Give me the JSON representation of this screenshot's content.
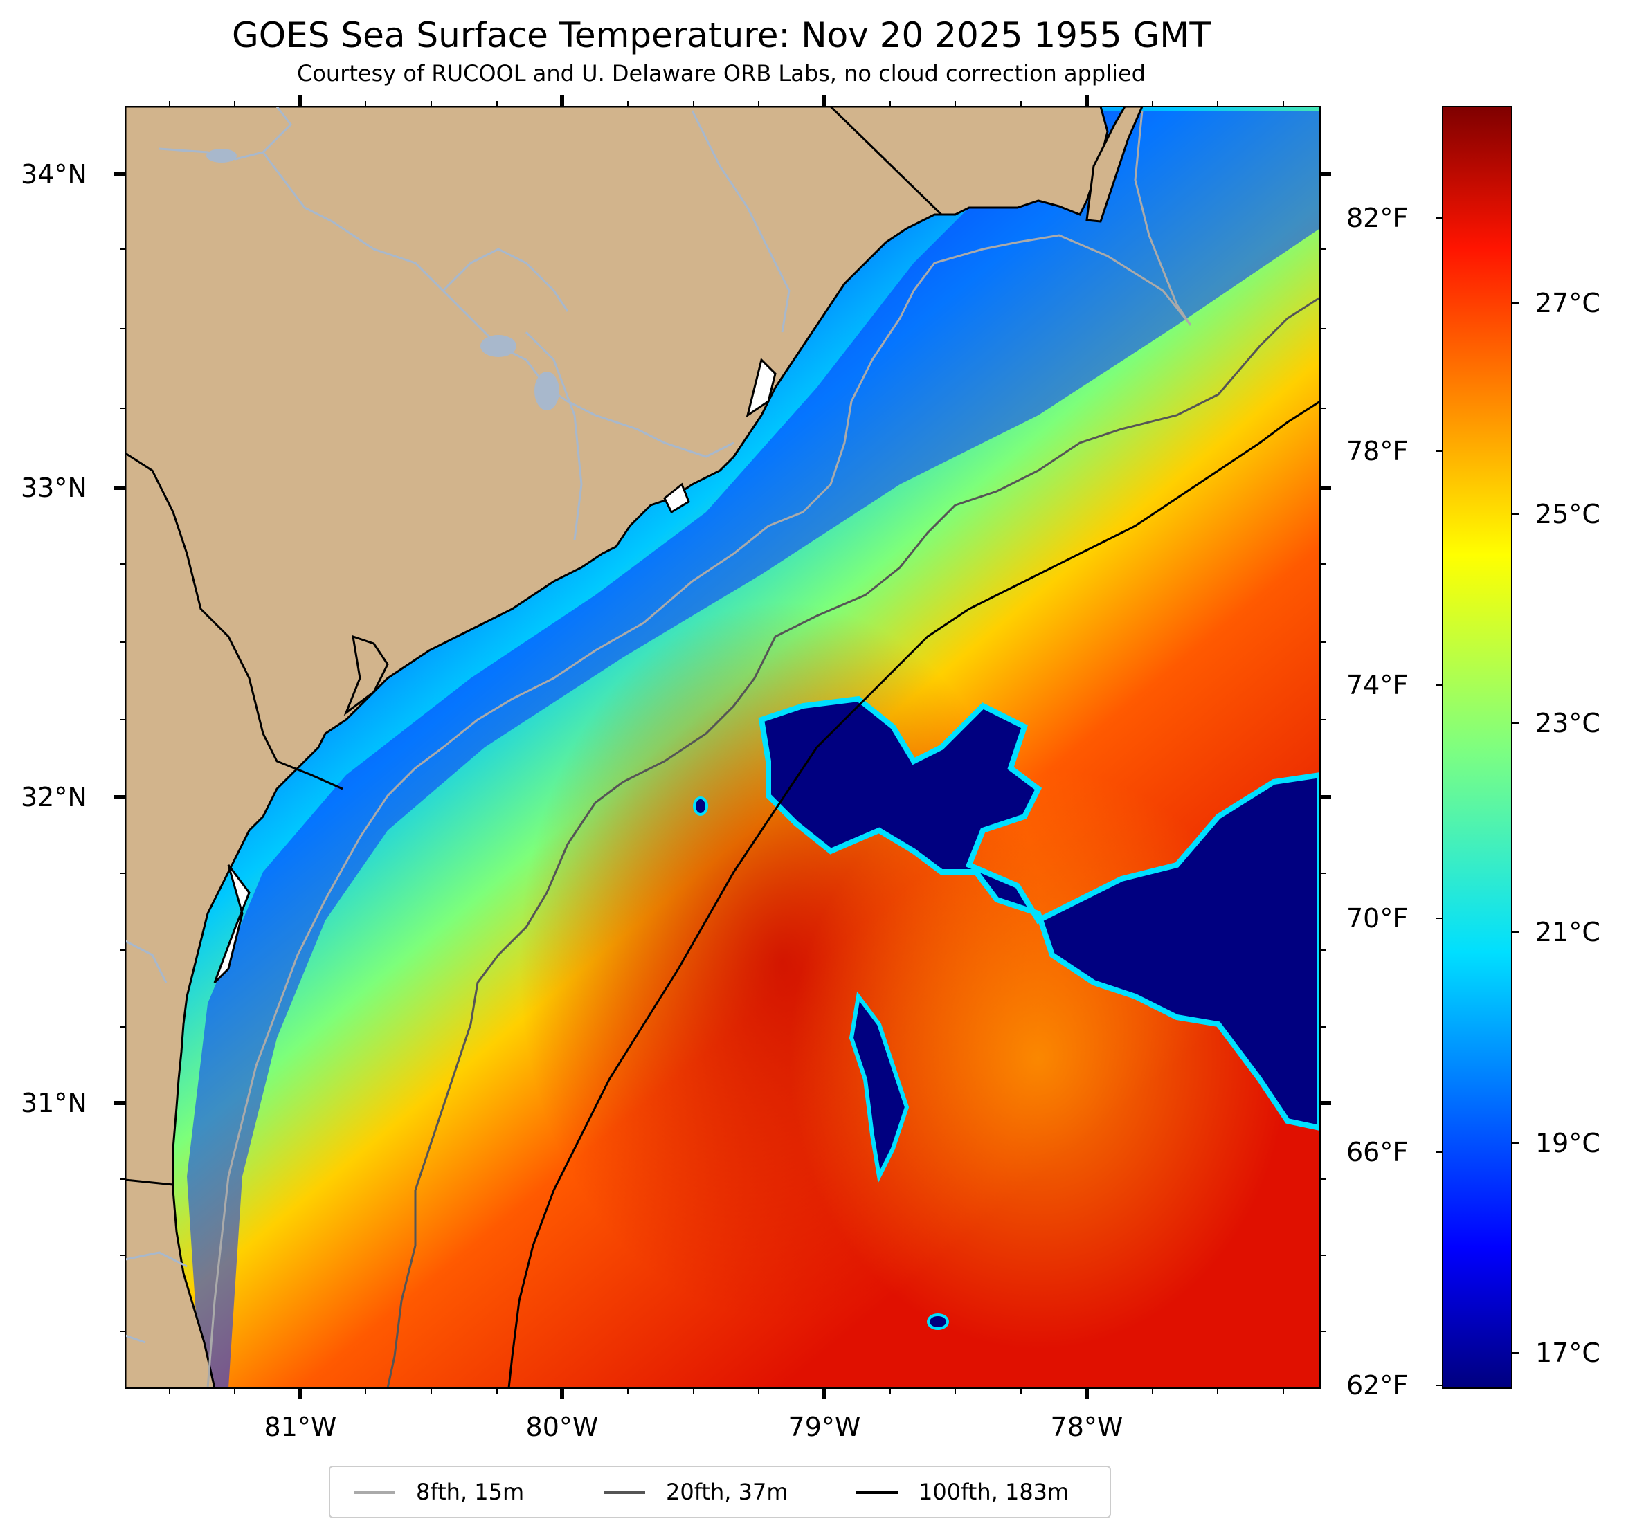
{
  "title": "GOES Sea Surface Temperature: Nov 20 2025 1955 GMT",
  "subtitle": "Courtesy of RUCOOL and U. Delaware ORB Labs, no cloud correction applied",
  "colors": {
    "land": "#d2b48c",
    "rivers": "#a8b8cc",
    "coast": "#000000",
    "contour_8fth": "#aaaaaa",
    "contour_20fth": "#555555",
    "contour_100fth": "#000000"
  },
  "axes": {
    "lat_labels": [
      "34°N",
      "33°N",
      "32°N",
      "31°N"
    ],
    "lon_labels": [
      "81°W",
      "80°W",
      "79°W",
      "78°W"
    ]
  },
  "colorbar": {
    "colormap": "jet",
    "fahrenheit_labels": [
      "82°F",
      "78°F",
      "74°F",
      "70°F",
      "66°F",
      "62°F"
    ],
    "celsius_labels": [
      "27°C",
      "25°C",
      "23°C",
      "21°C",
      "19°C",
      "17°C"
    ]
  },
  "legend": {
    "items": [
      {
        "label": "8fth, 15m",
        "color": "#aaaaaa"
      },
      {
        "label": "20fth, 37m",
        "color": "#555555"
      },
      {
        "label": "100fth, 183m",
        "color": "#000000"
      }
    ]
  }
}
